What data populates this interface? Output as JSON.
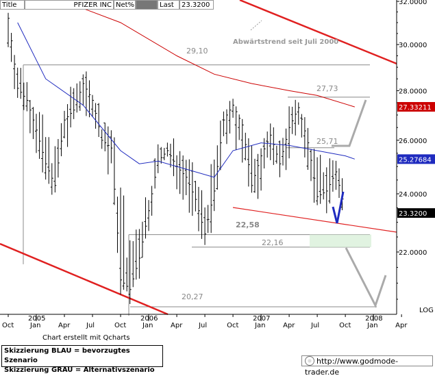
{
  "header": {
    "title_label": "Title",
    "symbol": "PFIZER INC",
    "mode": "Net%",
    "last_label": "Last",
    "last_value": "23.3200"
  },
  "chart_data": {
    "type": "candlestick",
    "title": "PFIZER INC",
    "annotation": "Abwärtstrend seit Juli 2000",
    "scale": "LOG",
    "ylim": [
      19.8,
      32.4
    ],
    "y_ticks": [
      {
        "value": 32,
        "label": "32.0000"
      },
      {
        "value": 30,
        "label": "30.0000"
      },
      {
        "value": 28,
        "label": "28.0000"
      },
      {
        "value": 26,
        "label": "26.0000"
      },
      {
        "value": 24,
        "label": "24.0000"
      },
      {
        "value": 22,
        "label": "22.0000"
      }
    ],
    "x_ticks": [
      {
        "t": 0,
        "label": "Oct",
        "year": ""
      },
      {
        "t": 3,
        "label": "Jan",
        "year": "2005"
      },
      {
        "t": 6,
        "label": "Apr",
        "year": ""
      },
      {
        "t": 9,
        "label": "Jul",
        "year": ""
      },
      {
        "t": 12,
        "label": "Oct",
        "year": ""
      },
      {
        "t": 15,
        "label": "Jan",
        "year": "2006"
      },
      {
        "t": 18,
        "label": "Apr",
        "year": ""
      },
      {
        "t": 21,
        "label": "Jul",
        "year": ""
      },
      {
        "t": 24,
        "label": "Oct",
        "year": ""
      },
      {
        "t": 27,
        "label": "Jan",
        "year": "2007"
      },
      {
        "t": 30,
        "label": "Apr",
        "year": ""
      },
      {
        "t": 33,
        "label": "Jul",
        "year": ""
      },
      {
        "t": 36,
        "label": "Oct",
        "year": ""
      },
      {
        "t": 39,
        "label": "Jan",
        "year": "2008"
      },
      {
        "t": 42,
        "label": "Apr",
        "year": ""
      }
    ],
    "price_close": [
      31.2,
      28.1,
      27.6,
      26.4,
      25.1,
      24.3,
      26.8,
      27.2,
      28.3,
      27.6,
      26.0,
      25.7,
      21.1,
      20.8,
      21.8,
      23.4,
      25.2,
      25.6,
      25.0,
      24.6,
      23.8,
      22.6,
      24.1,
      26.8,
      27.4,
      26.6,
      24.3,
      25.4,
      26.2,
      25.1,
      26.5,
      27.3,
      25.9,
      23.9,
      24.1,
      24.8,
      23.32
    ],
    "price_high": [
      31.6,
      29.6,
      28.7,
      27.9,
      26.6,
      25.9,
      27.4,
      28.6,
      29.1,
      28.3,
      27.4,
      26.8,
      25.2,
      22.6,
      23.9,
      24.4,
      26.0,
      26.2,
      26.1,
      25.7,
      24.9,
      24.1,
      25.6,
      27.4,
      27.7,
      27.1,
      25.9,
      26.3,
      26.7,
      26.2,
      27.5,
      27.7,
      26.7,
      25.5,
      25.7,
      25.6,
      24.4
    ],
    "price_low": [
      29.3,
      27.3,
      26.9,
      24.9,
      24.0,
      23.9,
      24.8,
      26.6,
      27.2,
      26.3,
      25.4,
      24.2,
      20.6,
      20.3,
      20.5,
      22.3,
      24.6,
      24.9,
      24.1,
      23.6,
      22.6,
      22.2,
      22.4,
      25.3,
      26.2,
      24.1,
      23.6,
      23.5,
      25.2,
      24.4,
      25.0,
      26.3,
      24.1,
      23.4,
      23.3,
      23.4,
      23.1
    ],
    "series": [
      {
        "name": "",
        "color": "#cc0000",
        "values_at_t": [
          [
            6,
            32.0
          ],
          [
            12,
            31.0
          ],
          [
            18,
            29.5
          ],
          [
            22,
            28.7
          ],
          [
            26,
            28.3
          ],
          [
            30,
            28.0
          ],
          [
            33,
            27.8
          ],
          [
            37,
            27.33
          ]
        ]
      },
      {
        "name": "",
        "color": "#1f2bbf",
        "values_at_t": [
          [
            1,
            31.0
          ],
          [
            4,
            28.5
          ],
          [
            8,
            27.4
          ],
          [
            12,
            25.6
          ],
          [
            14,
            25.1
          ],
          [
            16,
            25.2
          ],
          [
            19,
            24.9
          ],
          [
            22,
            24.6
          ],
          [
            24,
            25.6
          ],
          [
            27,
            25.9
          ],
          [
            30,
            25.8
          ],
          [
            33,
            25.6
          ],
          [
            36,
            25.4
          ],
          [
            37,
            25.28
          ]
        ]
      }
    ],
    "right_labels": [
      {
        "value": 27.33211,
        "label": "27.33211",
        "color": "#cc0000"
      },
      {
        "value": 25.27684,
        "label": "25.27684",
        "color": "#1f2bbf"
      },
      {
        "value": 23.32,
        "label": "23.3200",
        "color": "#000000"
      }
    ],
    "levels": [
      {
        "value": 29.1,
        "label": "29,10"
      },
      {
        "value": 27.73,
        "label": "27,73"
      },
      {
        "value": 25.71,
        "label": "25,71"
      },
      {
        "value": 22.58,
        "label": "22,58"
      },
      {
        "value": 22.16,
        "label": "22,16"
      },
      {
        "value": 20.27,
        "label": "20,27"
      }
    ],
    "scenarios": {
      "blau": "bevorzugtes Szenario",
      "grau": "Alternativszenario"
    }
  },
  "footer": {
    "credit": "Chart erstellt mit Qcharts",
    "legend_blue": "Skizzierung BLAU = bevorzugtes Szenario",
    "legend_grey": "Skizzierung GRAU = Alternativszenario",
    "website": "http://www.godmode-trader.de"
  }
}
